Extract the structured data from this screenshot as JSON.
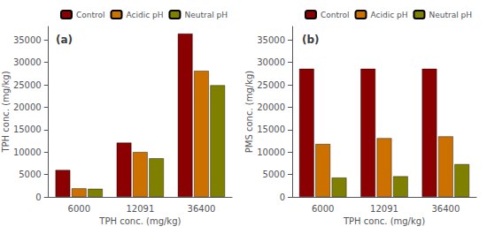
{
  "chart_data": [
    {
      "type": "bar",
      "title": "(a)",
      "xlabel": "TPH conc. (mg/kg)",
      "ylabel": "TPH conc. (mg/kg)",
      "categories": [
        "6000",
        "12091",
        "36400"
      ],
      "series": [
        {
          "name": "Control",
          "color": "#8B0000",
          "values": [
            6000,
            12091,
            36400
          ]
        },
        {
          "name": "Acidic pH",
          "color": "#CC7000",
          "values": [
            1900,
            10000,
            28100
          ]
        },
        {
          "name": "Neutral pH",
          "color": "#808000",
          "values": [
            1800,
            8600,
            24900
          ]
        }
      ],
      "ylim": [
        0,
        38000
      ],
      "yticks": [
        0,
        5000,
        10000,
        15000,
        20000,
        25000,
        30000,
        35000
      ],
      "grid": false,
      "legend": "upper right"
    },
    {
      "type": "bar",
      "title": "(b)",
      "xlabel": "TPH conc. (mg/kg)",
      "ylabel": "PMS conc. (mg/kg)",
      "categories": [
        "6000",
        "12091",
        "36400"
      ],
      "series": [
        {
          "name": "Control",
          "color": "#8B0000",
          "values": [
            28571,
            28571,
            28571
          ]
        },
        {
          "name": "Acidic pH",
          "color": "#CC7000",
          "values": [
            11800,
            13100,
            13500
          ]
        },
        {
          "name": "Neutral pH",
          "color": "#808000",
          "values": [
            4300,
            4600,
            7300
          ]
        }
      ],
      "ylim": [
        0,
        38000
      ],
      "yticks": [
        0,
        5000,
        10000,
        15000,
        20000,
        25000,
        30000,
        35000
      ],
      "grid": false,
      "legend": "upper right"
    }
  ]
}
